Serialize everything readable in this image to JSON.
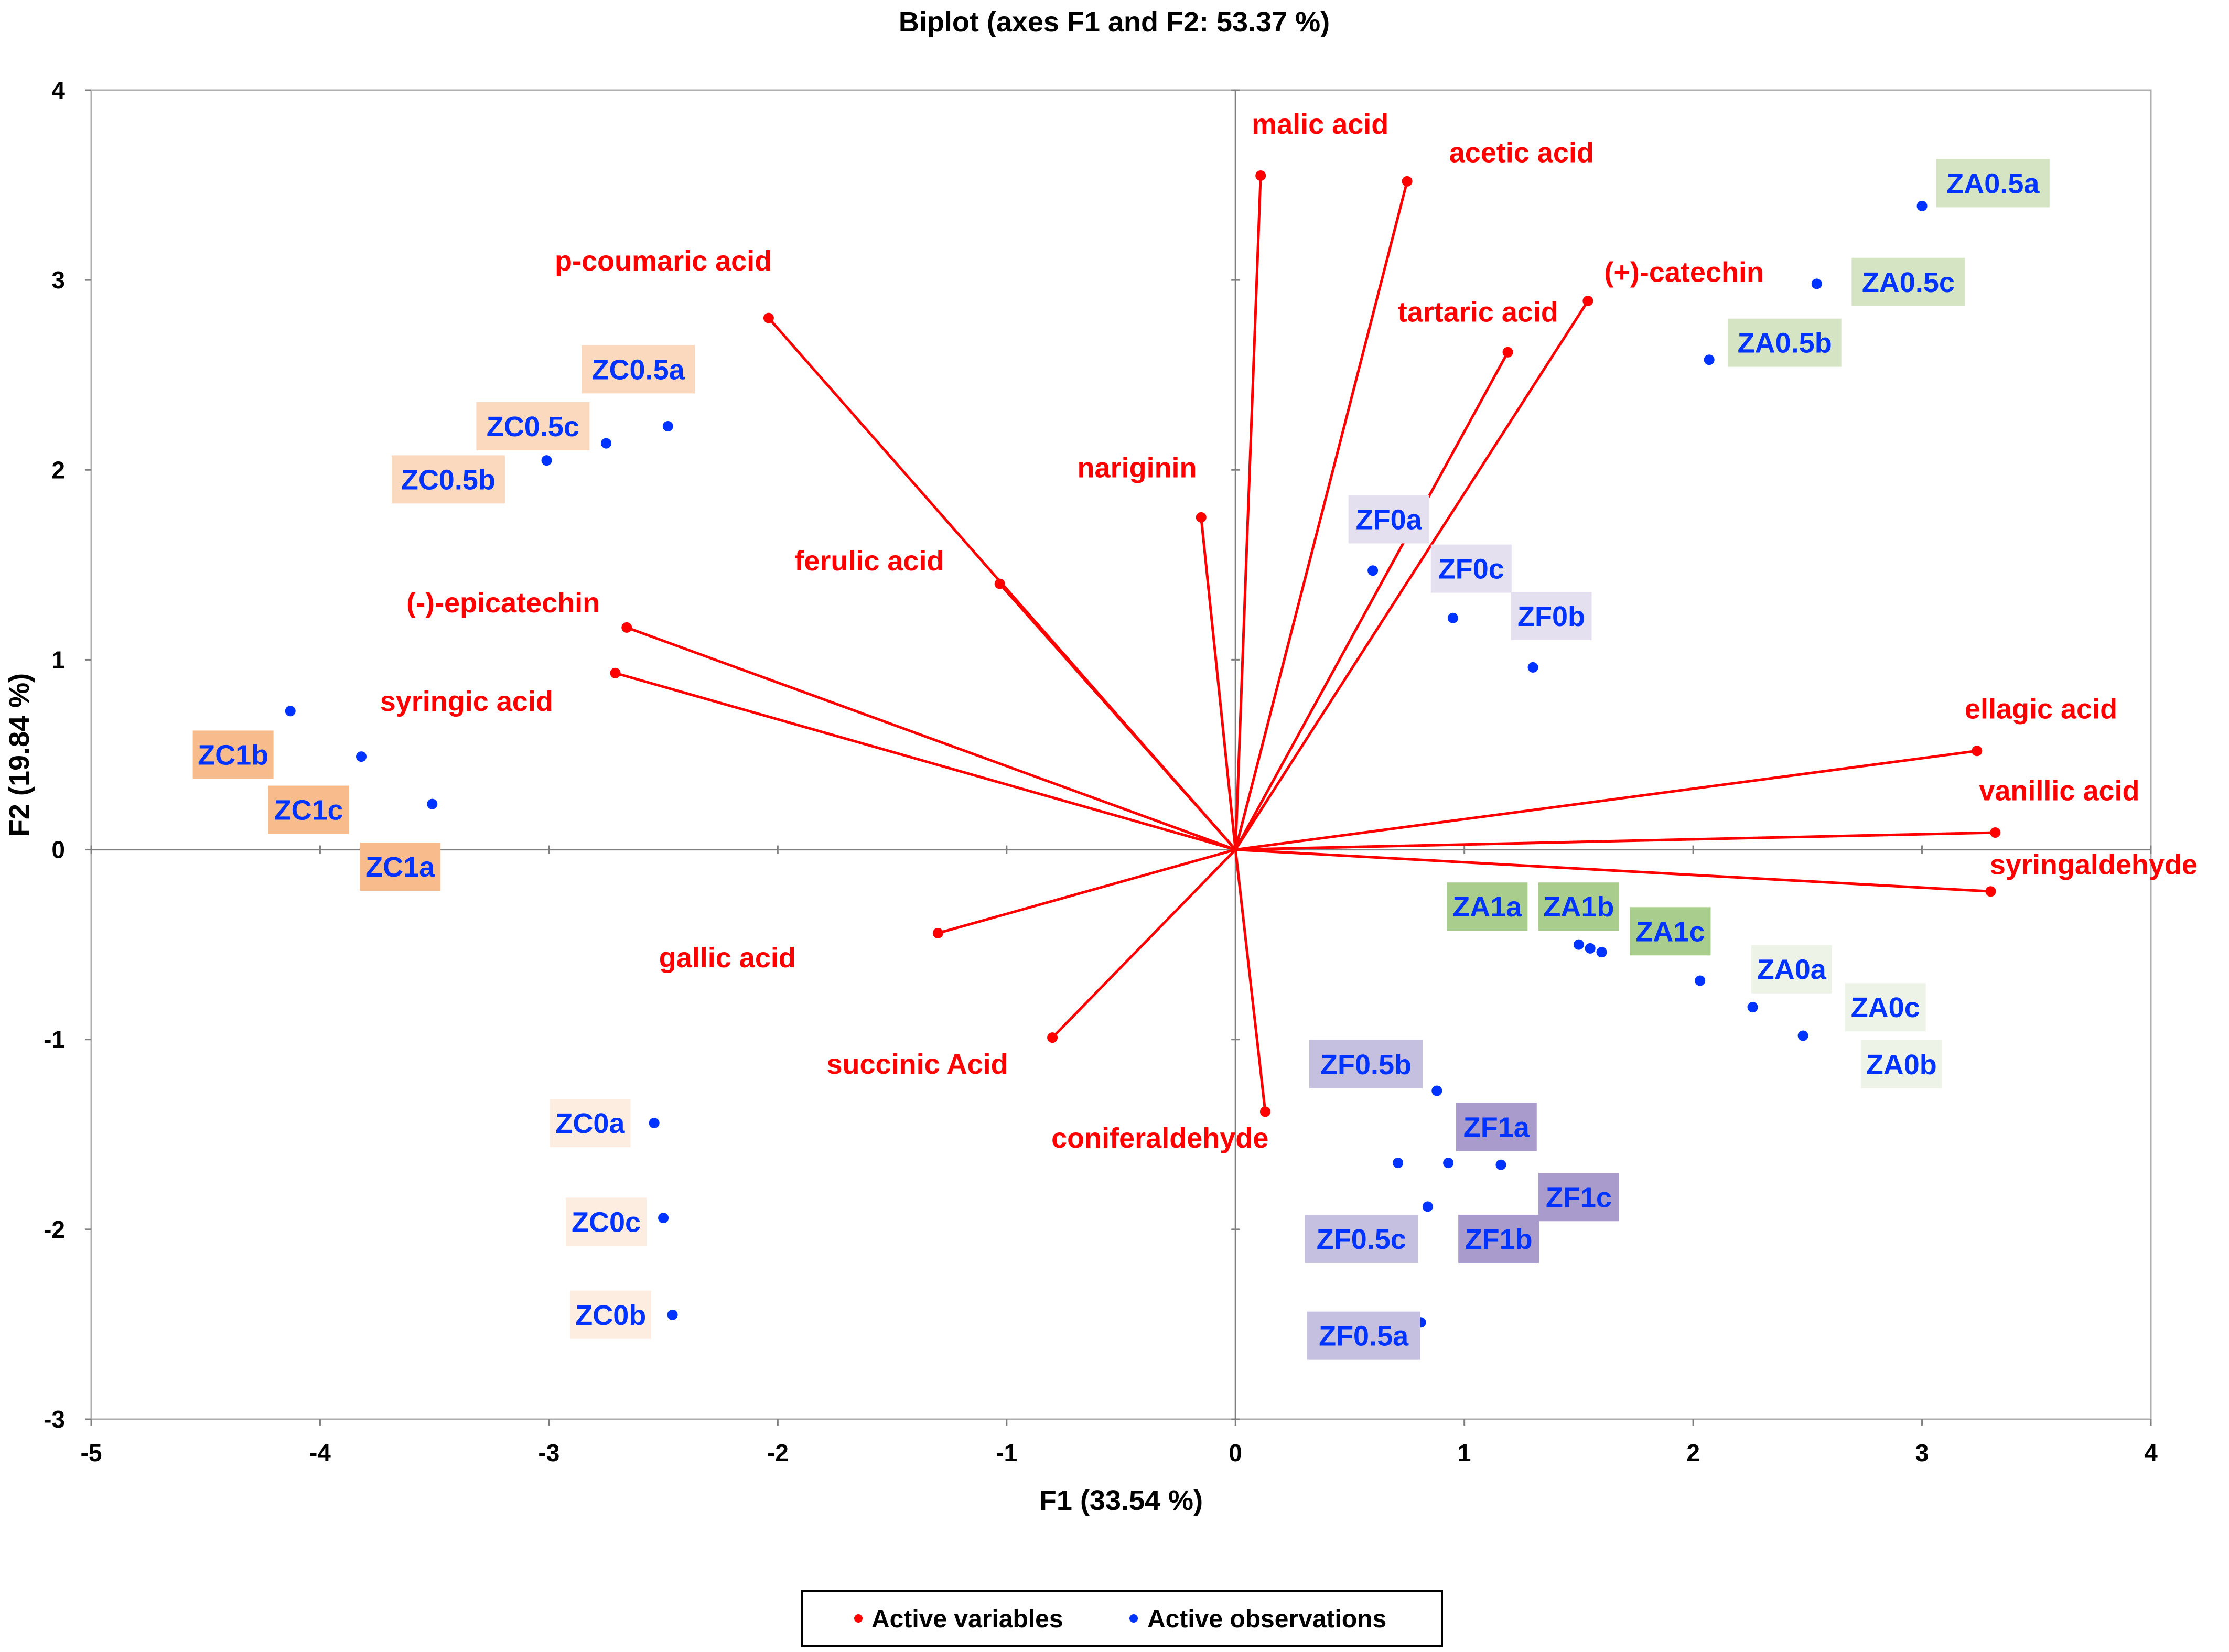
{
  "chart_data": {
    "type": "scatter",
    "subtype": "biplot",
    "title": "Biplot (axes F1 and F2: 53.37 %)",
    "xlabel": "F1 (33.54 %)",
    "ylabel": "F2 (19.84 %)",
    "xlim": [
      -5,
      4
    ],
    "ylim": [
      -3,
      4
    ],
    "xticks": [
      -5,
      -4,
      -3,
      -2,
      -1,
      0,
      1,
      2,
      3,
      4
    ],
    "yticks": [
      -3,
      -2,
      -1,
      0,
      1,
      2,
      3,
      4
    ],
    "legend": {
      "position": "bottom-center",
      "items": [
        {
          "label": "Active variables",
          "color": "#ff0000"
        },
        {
          "label": "Active observations",
          "color": "#0033ff"
        }
      ]
    },
    "colors": {
      "variables": "#ff0000",
      "observations": "#0033ff",
      "zero_lines": "#808080",
      "frame": "#b0b0b0"
    },
    "variables": [
      {
        "name": "malic acid",
        "x": 0.11,
        "y": 3.55,
        "lx": 0.37,
        "ly": 3.82,
        "anchor": "middle"
      },
      {
        "name": "acetic acid",
        "x": 0.75,
        "y": 3.52,
        "lx": 1.25,
        "ly": 3.67,
        "anchor": "middle"
      },
      {
        "name": "p-coumaric acid",
        "x": -2.04,
        "y": 2.8,
        "lx": -2.5,
        "ly": 3.1,
        "anchor": "middle"
      },
      {
        "name": "(+)-catechin",
        "x": 1.54,
        "y": 2.89,
        "lx": 1.96,
        "ly": 3.04,
        "anchor": "middle"
      },
      {
        "name": "tartaric acid",
        "x": 1.19,
        "y": 2.62,
        "lx": 1.06,
        "ly": 2.83,
        "anchor": "middle"
      },
      {
        "name": "nariginin",
        "x": -0.15,
        "y": 1.75,
        "lx": -0.43,
        "ly": 2.01,
        "anchor": "middle"
      },
      {
        "name": "ferulic acid",
        "x": -1.03,
        "y": 1.4,
        "lx": -1.6,
        "ly": 1.52,
        "anchor": "middle"
      },
      {
        "name": "(-)-epicatechin",
        "x": -2.66,
        "y": 1.17,
        "lx": -3.2,
        "ly": 1.3,
        "anchor": "middle"
      },
      {
        "name": "syringic acid",
        "x": -2.71,
        "y": 0.93,
        "lx": -3.36,
        "ly": 0.78,
        "anchor": "middle"
      },
      {
        "name": "ellagic acid",
        "x": 3.24,
        "y": 0.52,
        "lx": 3.52,
        "ly": 0.74,
        "anchor": "middle"
      },
      {
        "name": "vanillic acid",
        "x": 3.32,
        "y": 0.09,
        "lx": 3.6,
        "ly": 0.31,
        "anchor": "middle"
      },
      {
        "name": "syringaldehyde",
        "x": 3.3,
        "y": -0.22,
        "lx": 3.75,
        "ly": -0.08,
        "anchor": "middle"
      },
      {
        "name": "gallic acid",
        "x": -1.3,
        "y": -0.44,
        "lx": -2.22,
        "ly": -0.57,
        "anchor": "middle"
      },
      {
        "name": "succinic Acid",
        "x": -0.8,
        "y": -0.99,
        "lx": -1.39,
        "ly": -1.13,
        "anchor": "middle"
      },
      {
        "name": "coniferaldehyde",
        "x": 0.13,
        "y": -1.38,
        "lx": -0.33,
        "ly": -1.52,
        "anchor": "middle"
      }
    ],
    "observations": [
      {
        "x": -2.48,
        "y": 2.23
      },
      {
        "x": -2.75,
        "y": 2.14
      },
      {
        "x": -3.01,
        "y": 2.05
      },
      {
        "x": -4.13,
        "y": 0.73
      },
      {
        "x": -3.82,
        "y": 0.49
      },
      {
        "x": -3.51,
        "y": 0.24
      },
      {
        "x": -2.54,
        "y": -1.44
      },
      {
        "x": -2.5,
        "y": -1.94
      },
      {
        "x": -2.46,
        "y": -2.45
      },
      {
        "x": 0.6,
        "y": 1.47
      },
      {
        "x": 0.95,
        "y": 1.22
      },
      {
        "x": 1.3,
        "y": 0.96
      },
      {
        "x": 3.0,
        "y": 3.39
      },
      {
        "x": 2.54,
        "y": 2.98
      },
      {
        "x": 2.07,
        "y": 2.58
      },
      {
        "x": 1.5,
        "y": -0.5
      },
      {
        "x": 1.55,
        "y": -0.52
      },
      {
        "x": 1.6,
        "y": -0.54
      },
      {
        "x": 2.03,
        "y": -0.69
      },
      {
        "x": 2.26,
        "y": -0.83
      },
      {
        "x": 2.48,
        "y": -0.98
      },
      {
        "x": 0.88,
        "y": -1.27
      },
      {
        "x": 0.71,
        "y": -1.65
      },
      {
        "x": 0.84,
        "y": -1.88
      },
      {
        "x": 0.81,
        "y": -2.49
      },
      {
        "x": 0.93,
        "y": -1.65
      },
      {
        "x": 1.16,
        "y": -1.66
      }
    ],
    "observation_labels": [
      {
        "name": "ZC0.5a",
        "x": -2.61,
        "y": 2.53,
        "bg": "#fbd9bf"
      },
      {
        "name": "ZC0.5c",
        "x": -3.07,
        "y": 2.23,
        "bg": "#fbd9bf"
      },
      {
        "name": "ZC0.5b",
        "x": -3.44,
        "y": 1.95,
        "bg": "#fbd9bf"
      },
      {
        "name": "ZC1b",
        "x": -4.38,
        "y": 0.5,
        "bg": "#f8bb8c"
      },
      {
        "name": "ZC1c",
        "x": -4.05,
        "y": 0.21,
        "bg": "#f8bb8c"
      },
      {
        "name": "ZC1a",
        "x": -3.65,
        "y": -0.09,
        "bg": "#f8bb8c"
      },
      {
        "name": "ZC0a",
        "x": -2.82,
        "y": -1.44,
        "bg": "#fdece0"
      },
      {
        "name": "ZC0c",
        "x": -2.75,
        "y": -1.96,
        "bg": "#fdece0"
      },
      {
        "name": "ZC0b",
        "x": -2.73,
        "y": -2.45,
        "bg": "#fdece0"
      },
      {
        "name": "ZF0a",
        "x": 0.67,
        "y": 1.74,
        "bg": "#e4e0ef"
      },
      {
        "name": "ZF0c",
        "x": 1.03,
        "y": 1.48,
        "bg": "#e4e0ef"
      },
      {
        "name": "ZF0b",
        "x": 1.38,
        "y": 1.23,
        "bg": "#e4e0ef"
      },
      {
        "name": "ZA0.5a",
        "x": 3.31,
        "y": 3.51,
        "bg": "#d5e4c3"
      },
      {
        "name": "ZA0.5c",
        "x": 2.94,
        "y": 2.99,
        "bg": "#d5e4c3"
      },
      {
        "name": "ZA0.5b",
        "x": 2.4,
        "y": 2.67,
        "bg": "#d5e4c3"
      },
      {
        "name": "ZA1a",
        "x": 1.1,
        "y": -0.3,
        "bg": "#a9cd8c"
      },
      {
        "name": "ZA1b",
        "x": 1.5,
        "y": -0.3,
        "bg": "#a9cd8c"
      },
      {
        "name": "ZA1c",
        "x": 1.9,
        "y": -0.43,
        "bg": "#a9cd8c"
      },
      {
        "name": "ZA0a",
        "x": 2.43,
        "y": -0.63,
        "bg": "#eef3e8"
      },
      {
        "name": "ZA0c",
        "x": 2.84,
        "y": -0.83,
        "bg": "#eef3e8"
      },
      {
        "name": "ZA0b",
        "x": 2.91,
        "y": -1.13,
        "bg": "#eef3e8"
      },
      {
        "name": "ZF0.5b",
        "x": 0.57,
        "y": -1.13,
        "bg": "#c6c0e0"
      },
      {
        "name": "ZF1a",
        "x": 1.14,
        "y": -1.46,
        "bg": "#a99ccc"
      },
      {
        "name": "ZF1c",
        "x": 1.5,
        "y": -1.83,
        "bg": "#a99ccc"
      },
      {
        "name": "ZF1b",
        "x": 1.15,
        "y": -2.05,
        "bg": "#a99ccc"
      },
      {
        "name": "ZF0.5c",
        "x": 0.55,
        "y": -2.05,
        "bg": "#c6c0e0"
      },
      {
        "name": "ZF0.5a",
        "x": 0.56,
        "y": -2.56,
        "bg": "#c6c0e0"
      }
    ]
  }
}
